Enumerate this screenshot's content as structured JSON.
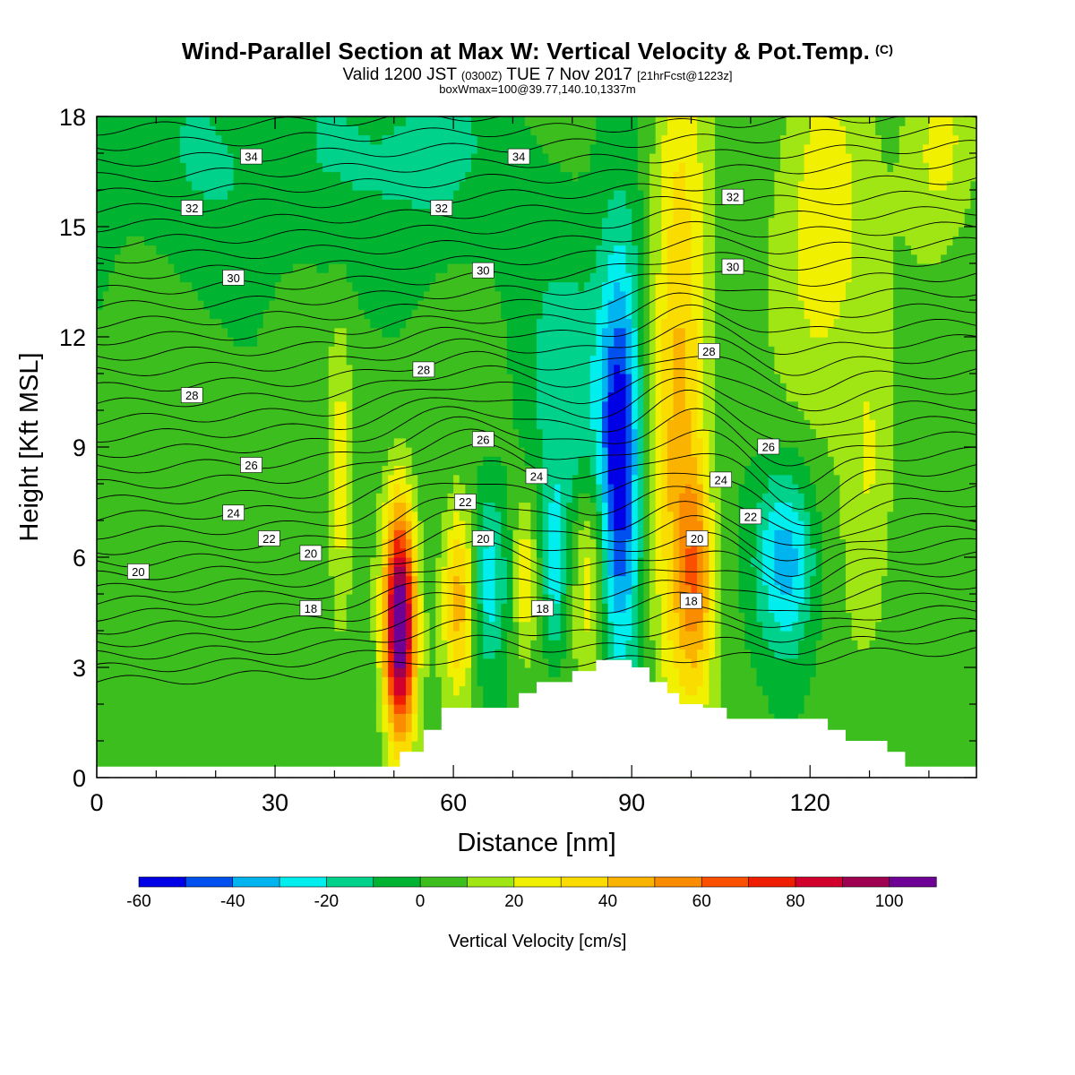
{
  "title": "Wind-Parallel Section at Max W: Vertical Velocity & Pot.Temp.",
  "title_mark": "(C)",
  "subtitle_main": "Valid 1200 JST",
  "subtitle_zulu": "(0300Z)",
  "subtitle_date": "TUE 7 Nov 2017",
  "subtitle_fcst": "[21hrFcst@1223z]",
  "subsubtitle": "boxWmax=100@39.77,140.10,1337m",
  "chart_data": {
    "type": "heatmap",
    "xlabel": "Distance [nm]",
    "ylabel": "Height [Kft MSL]",
    "xlim": [
      0,
      148
    ],
    "ylim": [
      0,
      18
    ],
    "x_ticks": [
      "0",
      "30",
      "60",
      "90",
      "120"
    ],
    "y_ticks": [
      "0",
      "3",
      "6",
      "9",
      "12",
      "15",
      "18"
    ],
    "colorbar": {
      "label": "Vertical Velocity [cm/s]",
      "tick_labels": [
        "-60",
        "-40",
        "-20",
        "0",
        "20",
        "40",
        "60",
        "80",
        "100"
      ],
      "levels": [
        -60,
        -50,
        -40,
        -30,
        -20,
        -10,
        0,
        10,
        20,
        30,
        40,
        50,
        60,
        70,
        80,
        90,
        100,
        110
      ],
      "colors": [
        "#0000e6",
        "#0050f0",
        "#00b4f0",
        "#00eeee",
        "#00d28c",
        "#00b432",
        "#3cbe1e",
        "#a0e614",
        "#f0f000",
        "#fadc00",
        "#fab400",
        "#fa8c00",
        "#fa5000",
        "#f01e00",
        "#d2002d",
        "#a00050",
        "#6e0096"
      ]
    },
    "terrain": [
      [
        0,
        0.3
      ],
      [
        46,
        0.3
      ],
      [
        51,
        0.3
      ],
      [
        51,
        0.7
      ],
      [
        55,
        0.7
      ],
      [
        55,
        1.3
      ],
      [
        58,
        1.3
      ],
      [
        58,
        1.9
      ],
      [
        71,
        1.9
      ],
      [
        71,
        2.3
      ],
      [
        74,
        2.3
      ],
      [
        74,
        2.6
      ],
      [
        80,
        2.6
      ],
      [
        80,
        2.9
      ],
      [
        84,
        2.9
      ],
      [
        84,
        3.2
      ],
      [
        90,
        3.2
      ],
      [
        90,
        3.0
      ],
      [
        93,
        3.0
      ],
      [
        93,
        2.6
      ],
      [
        96,
        2.6
      ],
      [
        96,
        2.3
      ],
      [
        98,
        2.3
      ],
      [
        98,
        2.0
      ],
      [
        102,
        2.0
      ],
      [
        102,
        1.9
      ],
      [
        106,
        1.9
      ],
      [
        106,
        1.6
      ],
      [
        123,
        1.6
      ],
      [
        123,
        1.3
      ],
      [
        126,
        1.3
      ],
      [
        126,
        1.0
      ],
      [
        133,
        1.0
      ],
      [
        133,
        0.7
      ],
      [
        136,
        0.7
      ],
      [
        136,
        0.3
      ],
      [
        148,
        0.3
      ]
    ],
    "w_features": [
      {
        "x": 51,
        "z": 4.2,
        "w": 110,
        "sx": 1.8,
        "sz": 2.2
      },
      {
        "x": 61,
        "z": 4.8,
        "w": 45,
        "sx": 2.0,
        "sz": 1.8
      },
      {
        "x": 72,
        "z": 5.5,
        "w": 25,
        "sx": 1.3,
        "sz": 1.5
      },
      {
        "x": 83,
        "z": 5.6,
        "w": 32,
        "sx": 2.0,
        "sz": 2.0
      },
      {
        "x": 41,
        "z": 8.0,
        "w": 20,
        "sx": 1.3,
        "sz": 3.0
      },
      {
        "x": 66,
        "z": 5.5,
        "w": -30,
        "sx": 2.2,
        "sz": 1.8
      },
      {
        "x": 77,
        "z": 5.6,
        "w": -25,
        "sx": 1.3,
        "sz": 1.7
      },
      {
        "x": 88,
        "z": 8.8,
        "w": -58,
        "sx": 2.5,
        "sz": 4.0
      },
      {
        "x": 80,
        "z": 10.5,
        "w": -20,
        "sx": 6,
        "sz": 3.5
      },
      {
        "x": 98,
        "z": 10.5,
        "w": 40,
        "sx": 3.2,
        "sz": 7.0
      },
      {
        "x": 101,
        "z": 5.5,
        "w": 35,
        "sx": 2.0,
        "sz": 2.0
      },
      {
        "x": 116,
        "z": 6.0,
        "w": -40,
        "sx": 3.5,
        "sz": 1.8
      },
      {
        "x": 122,
        "z": 15.0,
        "w": 25,
        "sx": 5,
        "sz": 3.5
      },
      {
        "x": 130,
        "z": 8.5,
        "w": 18,
        "sx": 3,
        "sz": 3
      },
      {
        "x": 142,
        "z": 17.2,
        "w": 22,
        "sx": 4,
        "sz": 2
      },
      {
        "x": 28,
        "z": 17,
        "w": -14,
        "sx": 25,
        "sz": 2.5
      },
      {
        "x": 57,
        "z": 17,
        "w": -13,
        "sx": 6,
        "sz": 2
      }
    ],
    "theta_labels": [
      {
        "text": "34",
        "x": 26,
        "z": 16.9
      },
      {
        "text": "34",
        "x": 71,
        "z": 16.9
      },
      {
        "text": "32",
        "x": 16,
        "z": 15.5
      },
      {
        "text": "32",
        "x": 58,
        "z": 15.5
      },
      {
        "text": "32",
        "x": 107,
        "z": 15.8
      },
      {
        "text": "30",
        "x": 23,
        "z": 13.6
      },
      {
        "text": "30",
        "x": 65,
        "z": 13.8
      },
      {
        "text": "30",
        "x": 107,
        "z": 13.9
      },
      {
        "text": "28",
        "x": 16,
        "z": 10.4
      },
      {
        "text": "28",
        "x": 55,
        "z": 11.1
      },
      {
        "text": "28",
        "x": 103,
        "z": 11.6
      },
      {
        "text": "26",
        "x": 26,
        "z": 8.5
      },
      {
        "text": "26",
        "x": 65,
        "z": 9.2
      },
      {
        "text": "26",
        "x": 113,
        "z": 9.0
      },
      {
        "text": "24",
        "x": 23,
        "z": 7.2
      },
      {
        "text": "24",
        "x": 74,
        "z": 8.2
      },
      {
        "text": "24",
        "x": 105,
        "z": 8.1
      },
      {
        "text": "22",
        "x": 29,
        "z": 6.5
      },
      {
        "text": "22",
        "x": 62,
        "z": 7.5
      },
      {
        "text": "22",
        "x": 110,
        "z": 7.1
      },
      {
        "text": "20",
        "x": 7,
        "z": 5.6
      },
      {
        "text": "20",
        "x": 36,
        "z": 6.1
      },
      {
        "text": "20",
        "x": 65,
        "z": 6.5
      },
      {
        "text": "20",
        "x": 101,
        "z": 6.5
      },
      {
        "text": "18",
        "x": 36,
        "z": 4.6
      },
      {
        "text": "18",
        "x": 75,
        "z": 4.6
      },
      {
        "text": "18",
        "x": 100,
        "z": 4.8
      }
    ]
  }
}
